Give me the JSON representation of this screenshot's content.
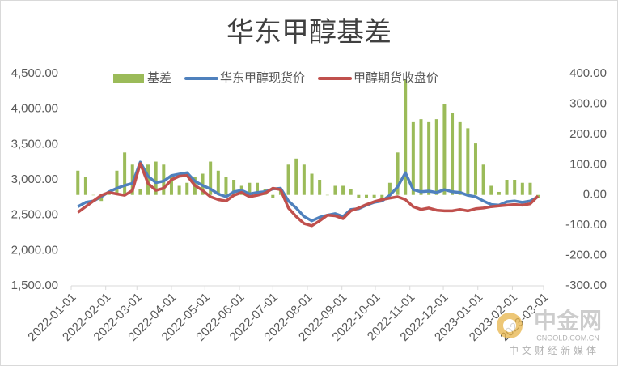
{
  "chart_data": {
    "type": "combo",
    "title": "华东甲醇基差",
    "x": [
      "2022-01-07",
      "2022-01-14",
      "2022-01-21",
      "2022-01-28",
      "2022-02-04",
      "2022-02-11",
      "2022-02-18",
      "2022-02-25",
      "2022-03-04",
      "2022-03-11",
      "2022-03-18",
      "2022-03-25",
      "2022-04-01",
      "2022-04-08",
      "2022-04-15",
      "2022-04-22",
      "2022-04-29",
      "2022-05-06",
      "2022-05-13",
      "2022-05-20",
      "2022-05-27",
      "2022-06-03",
      "2022-06-10",
      "2022-06-17",
      "2022-06-24",
      "2022-07-01",
      "2022-07-08",
      "2022-07-15",
      "2022-07-22",
      "2022-07-29",
      "2022-08-05",
      "2022-08-12",
      "2022-08-19",
      "2022-08-26",
      "2022-09-02",
      "2022-09-09",
      "2022-09-16",
      "2022-09-23",
      "2022-09-30",
      "2022-10-07",
      "2022-10-14",
      "2022-10-21",
      "2022-10-28",
      "2022-11-04",
      "2022-11-11",
      "2022-11-18",
      "2022-11-25",
      "2022-12-02",
      "2022-12-09",
      "2022-12-16",
      "2022-12-23",
      "2022-12-30",
      "2023-01-06",
      "2023-01-13",
      "2023-01-20",
      "2023-01-27",
      "2023-02-03",
      "2023-02-10",
      "2023-02-17",
      "2023-02-24"
    ],
    "series": [
      {
        "name": "基差",
        "type": "bar",
        "axis": "y2",
        "color": "#9bbb59",
        "values": [
          80,
          60,
          0,
          -20,
          10,
          80,
          140,
          100,
          20,
          100,
          110,
          100,
          60,
          30,
          40,
          60,
          70,
          110,
          80,
          60,
          50,
          30,
          40,
          40,
          20,
          -10,
          20,
          100,
          120,
          100,
          70,
          50,
          0,
          30,
          30,
          20,
          -10,
          -10,
          -10,
          -20,
          40,
          140,
          380,
          240,
          250,
          240,
          250,
          300,
          270,
          240,
          220,
          170,
          100,
          30,
          10,
          50,
          50,
          40,
          40,
          -10
        ]
      },
      {
        "name": "华东甲醇现货价",
        "type": "line",
        "color": "#4f81bd",
        "values": [
          2620,
          2680,
          2700,
          2760,
          2830,
          2880,
          2920,
          2950,
          3250,
          3050,
          2960,
          2980,
          3060,
          3080,
          3100,
          2980,
          2920,
          2870,
          2800,
          2760,
          2830,
          2850,
          2800,
          2820,
          2830,
          2870,
          2880,
          2700,
          2600,
          2480,
          2420,
          2470,
          2500,
          2520,
          2480,
          2580,
          2590,
          2640,
          2680,
          2700,
          2780,
          2900,
          3100,
          2860,
          2830,
          2840,
          2820,
          2860,
          2830,
          2820,
          2780,
          2760,
          2700,
          2650,
          2640,
          2690,
          2700,
          2680,
          2700,
          2760
        ]
      },
      {
        "name": "甲醇期货收盘价",
        "type": "line",
        "color": "#c0504d",
        "values": [
          2540,
          2620,
          2700,
          2780,
          2820,
          2800,
          2780,
          2850,
          3230,
          2950,
          2850,
          2880,
          3000,
          3050,
          3060,
          2920,
          2850,
          2760,
          2720,
          2700,
          2780,
          2820,
          2760,
          2780,
          2810,
          2880,
          2860,
          2600,
          2480,
          2380,
          2350,
          2420,
          2500,
          2490,
          2450,
          2560,
          2600,
          2650,
          2690,
          2720,
          2740,
          2760,
          2720,
          2620,
          2580,
          2600,
          2570,
          2560,
          2560,
          2580,
          2560,
          2590,
          2600,
          2620,
          2630,
          2640,
          2650,
          2640,
          2660,
          2770
        ]
      }
    ],
    "xlim": [
      "2022-01-01",
      "2023-03-01"
    ],
    "xticks": [
      "2022-01-01",
      "2022-02-01",
      "2022-03-01",
      "2022-04-01",
      "2022-05-01",
      "2022-06-01",
      "2022-07-01",
      "2022-08-01",
      "2022-09-01",
      "2022-10-01",
      "2022-11-01",
      "2022-12-01",
      "2023-01-01",
      "2023-02-01",
      "2023-03-01"
    ],
    "ylim": [
      1500,
      4500
    ],
    "yticks": [
      {
        "value": 1500,
        "label": "1,500.00"
      },
      {
        "value": 2000,
        "label": "2,000.00"
      },
      {
        "value": 2500,
        "label": "2,500.00"
      },
      {
        "value": 3000,
        "label": "3,000.00"
      },
      {
        "value": 3500,
        "label": "3,500.00"
      },
      {
        "value": 4000,
        "label": "4,000.00"
      },
      {
        "value": 4500,
        "label": "4,500.00"
      }
    ],
    "y2lim": [
      -300,
      400
    ],
    "y2ticks": [
      {
        "value": -300,
        "label": "-300.00"
      },
      {
        "value": -200,
        "label": "-200.00"
      },
      {
        "value": -100,
        "label": "-100.00"
      },
      {
        "value": 0,
        "label": "0.00"
      },
      {
        "value": 100,
        "label": "100.00"
      },
      {
        "value": 200,
        "label": "200.00"
      },
      {
        "value": 300,
        "label": "300.00"
      },
      {
        "value": 400,
        "label": "400.00"
      }
    ],
    "legend": "top",
    "grid": false
  },
  "watermark": {
    "brand": "中金网",
    "site": "CNGOLD.COM.CN",
    "slogan": "中文财经新媒体"
  }
}
